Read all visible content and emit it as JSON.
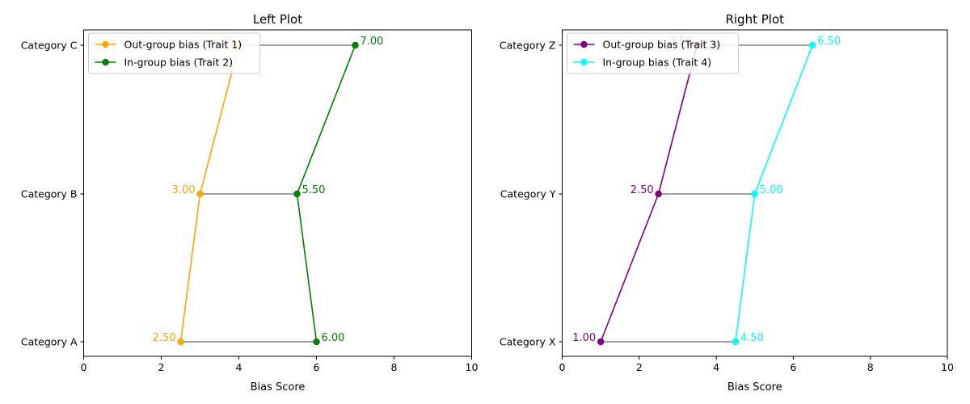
{
  "chart_data": [
    {
      "type": "line",
      "title": "Left Plot",
      "xlabel": "Bias Score",
      "ylabel": "",
      "xlim": [
        0,
        10
      ],
      "xticks": [
        "0",
        "2",
        "4",
        "6",
        "8",
        "10"
      ],
      "categories": [
        "Category A",
        "Category B",
        "Category C"
      ],
      "connector_color": "#808080",
      "legend_position": "upper-left",
      "series": [
        {
          "name": "Out-group bias (Trait 1)",
          "color": "#FFA500",
          "values": [
            2.5,
            3.0,
            4.0
          ],
          "labels": [
            "2.50",
            "3.00",
            "4.00"
          ]
        },
        {
          "name": "In-group bias (Trait 2)",
          "color": "#008000",
          "values": [
            6.0,
            5.5,
            7.0
          ],
          "labels": [
            "6.00",
            "5.50",
            "7.00"
          ]
        }
      ]
    },
    {
      "type": "line",
      "title": "Right Plot",
      "xlabel": "Bias Score",
      "ylabel": "",
      "xlim": [
        0,
        10
      ],
      "xticks": [
        "0",
        "2",
        "4",
        "6",
        "8",
        "10"
      ],
      "categories": [
        "Category X",
        "Category Y",
        "Category Z"
      ],
      "connector_color": "#808080",
      "legend_position": "upper-left",
      "series": [
        {
          "name": "Out-group bias (Trait 3)",
          "color": "#800080",
          "values": [
            1.0,
            2.5,
            3.5
          ],
          "labels": [
            "1.00",
            "2.50",
            "3.50"
          ]
        },
        {
          "name": "In-group bias (Trait 4)",
          "color": "#00FFFF",
          "values": [
            4.5,
            5.0,
            6.5
          ],
          "labels": [
            "4.50",
            "5.00",
            "6.50"
          ]
        }
      ]
    }
  ]
}
